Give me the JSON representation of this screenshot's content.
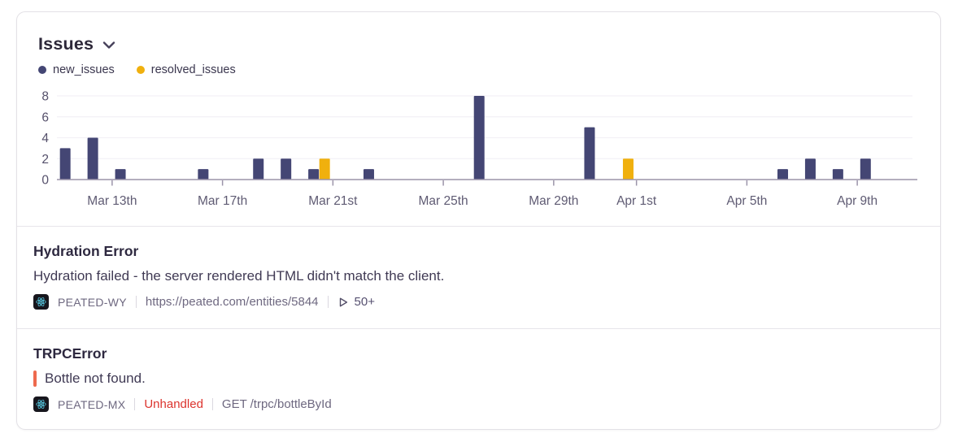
{
  "header": {
    "title": "Issues"
  },
  "legend": [
    {
      "label": "new_issues",
      "color": "#444674"
    },
    {
      "label": "resolved_issues",
      "color": "#F0B00E"
    }
  ],
  "colors": {
    "new_issues": "#444674",
    "resolved_issues": "#F0B00E",
    "unhandled": "#DC342E",
    "quote_bar": "#EE6A4E",
    "react_logo": "#5BD6F0",
    "axis_line": "#9B94A9",
    "grid_line": "#F3F1F6",
    "axis_text": "#5F5B73"
  },
  "chart_data": {
    "type": "bar",
    "title": "Issues",
    "categories": [
      "Mar 11",
      "Mar 12",
      "Mar 13",
      "Mar 14",
      "Mar 15",
      "Mar 16",
      "Mar 17",
      "Mar 18",
      "Mar 19",
      "Mar 20",
      "Mar 21",
      "Mar 22",
      "Mar 23",
      "Mar 24",
      "Mar 25",
      "Mar 26",
      "Mar 27",
      "Mar 28",
      "Mar 29",
      "Mar 30",
      "Mar 31",
      "Apr 1",
      "Apr 2",
      "Apr 3",
      "Apr 4",
      "Apr 5",
      "Apr 6",
      "Apr 7",
      "Apr 8",
      "Apr 9",
      "Apr 10"
    ],
    "series": [
      {
        "name": "new_issues",
        "color": "#444674",
        "values": [
          3,
          4,
          1,
          0,
          0,
          1,
          0,
          2,
          2,
          1,
          0,
          1,
          0,
          0,
          0,
          8,
          0,
          0,
          0,
          5,
          0,
          0,
          0,
          0,
          0,
          0,
          1,
          2,
          1,
          2,
          0
        ]
      },
      {
        "name": "resolved_issues",
        "color": "#F0B00E",
        "values": [
          0,
          0,
          0,
          0,
          0,
          0,
          0,
          0,
          0,
          2,
          0,
          0,
          0,
          0,
          0,
          0,
          0,
          0,
          0,
          0,
          2,
          0,
          0,
          0,
          0,
          0,
          0,
          0,
          0,
          0,
          0
        ]
      }
    ],
    "xtick_labels": [
      "Mar 13th",
      "Mar 17th",
      "Mar 21st",
      "Mar 25th",
      "Mar 29th",
      "Apr 1st",
      "Apr 5th",
      "Apr 9th"
    ],
    "xtick_indices": [
      2,
      6,
      10,
      14,
      18,
      21,
      25,
      29
    ],
    "yticks": [
      0,
      2,
      4,
      6,
      8
    ],
    "ylim": [
      0,
      8
    ],
    "grid": true,
    "legend_position": "top-left"
  },
  "issues": [
    {
      "title": "Hydration Error",
      "message": "Hydration failed - the server rendered HTML didn't match the client.",
      "project": "PEATED-WY",
      "platform": "react",
      "url": "https://peated.com/entities/5844",
      "replays": "50+"
    },
    {
      "title": "TRPCError",
      "message": "Bottle not found.",
      "project": "PEATED-MX",
      "platform": "react",
      "status": "Unhandled",
      "endpoint": "GET /trpc/bottleById"
    }
  ]
}
